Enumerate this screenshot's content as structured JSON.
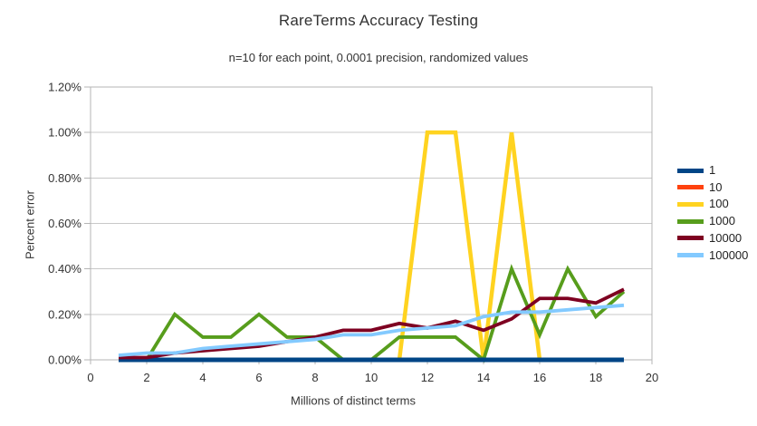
{
  "chart_data": {
    "type": "line",
    "title": "RareTerms Accuracy Testing",
    "subtitle": "n=10 for each point, 0.0001 precision, randomized values",
    "xlabel": "Millions of distinct terms",
    "ylabel": "Percent error",
    "xlim": [
      0,
      20
    ],
    "ylim_percent": [
      0,
      1.2
    ],
    "grid": "horizontal",
    "legend_position": "right",
    "x_ticks": [
      0,
      2,
      4,
      6,
      8,
      10,
      12,
      14,
      16,
      18,
      20
    ],
    "y_ticks": [
      {
        "value": 0.0,
        "label": "0.00%"
      },
      {
        "value": 0.2,
        "label": "0.20%"
      },
      {
        "value": 0.4,
        "label": "0.40%"
      },
      {
        "value": 0.6,
        "label": "0.60%"
      },
      {
        "value": 0.8,
        "label": "0.80%"
      },
      {
        "value": 1.0,
        "label": "1.00%"
      },
      {
        "value": 1.2,
        "label": "1.20%"
      }
    ],
    "x": [
      1,
      2,
      3,
      4,
      5,
      6,
      7,
      8,
      9,
      10,
      11,
      12,
      13,
      14,
      15,
      16,
      17,
      18,
      19
    ],
    "series": [
      {
        "name": "1",
        "color": "#004586",
        "values": [
          0,
          0,
          0,
          0,
          0,
          0,
          0,
          0,
          0,
          0,
          0,
          0,
          0,
          0,
          0,
          0,
          0,
          0,
          0
        ]
      },
      {
        "name": "10",
        "color": "#ff420e",
        "values": [
          0,
          0,
          0,
          0,
          0,
          0,
          0,
          0,
          0,
          0,
          0,
          0,
          0,
          0,
          0,
          0,
          0,
          0,
          0
        ]
      },
      {
        "name": "100",
        "color": "#ffd320",
        "values": [
          0,
          0,
          0,
          0,
          0,
          0,
          0,
          0,
          0,
          0,
          0,
          1.0,
          1.0,
          0,
          1.0,
          0,
          0,
          0,
          0
        ]
      },
      {
        "name": "1000",
        "color": "#579d1c",
        "values": [
          0,
          0,
          0.2,
          0.1,
          0.1,
          0.2,
          0.1,
          0.1,
          0,
          0,
          0.1,
          0.1,
          0.1,
          0,
          0.4,
          0.11,
          0.4,
          0.19,
          0.3
        ]
      },
      {
        "name": "10000",
        "color": "#7e0021",
        "values": [
          0.01,
          0.01,
          0.03,
          0.04,
          0.05,
          0.06,
          0.08,
          0.1,
          0.13,
          0.13,
          0.16,
          0.14,
          0.17,
          0.13,
          0.18,
          0.27,
          0.27,
          0.25,
          0.31
        ]
      },
      {
        "name": "100000",
        "color": "#83caff",
        "values": [
          0.02,
          0.03,
          0.03,
          0.05,
          0.06,
          0.07,
          0.08,
          0.09,
          0.11,
          0.11,
          0.13,
          0.14,
          0.15,
          0.19,
          0.21,
          0.21,
          0.22,
          0.23,
          0.24
        ]
      }
    ]
  }
}
